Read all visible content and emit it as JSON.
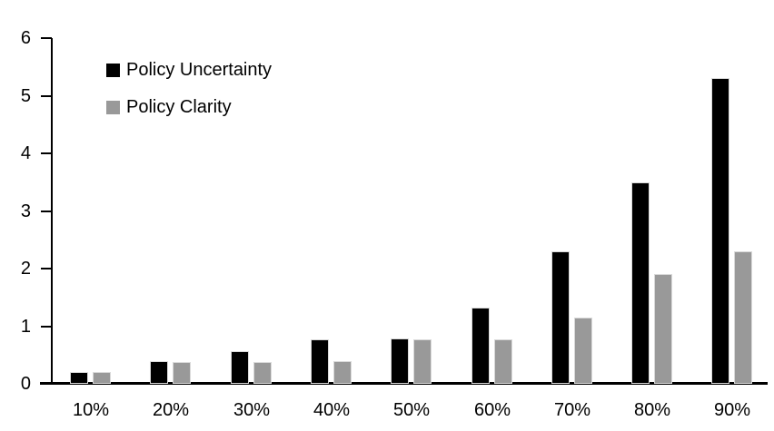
{
  "chart_data": {
    "type": "bar",
    "title": "",
    "xlabel": "",
    "ylabel": "",
    "categories": [
      "10%",
      "20%",
      "30%",
      "40%",
      "50%",
      "60%",
      "70%",
      "80%",
      "90%"
    ],
    "series": [
      {
        "name": "Policy Uncertainty",
        "color": "#000000",
        "values": [
          0.2,
          0.4,
          0.57,
          0.77,
          0.78,
          1.33,
          2.3,
          3.5,
          5.3
        ]
      },
      {
        "name": "Policy Clarity",
        "color": "#999999",
        "values": [
          0.2,
          0.38,
          0.38,
          0.39,
          0.77,
          0.77,
          1.15,
          1.9,
          2.3
        ]
      }
    ],
    "ylim": [
      0,
      6
    ],
    "yticks": [
      "0",
      "1",
      "2",
      "3",
      "4",
      "5",
      "6"
    ],
    "grid": false,
    "legend_position": "top-left"
  },
  "colors": {
    "background": "#ffffff",
    "axis": "#000000",
    "text": "#000000",
    "bar_border": "#d9d9d9"
  }
}
